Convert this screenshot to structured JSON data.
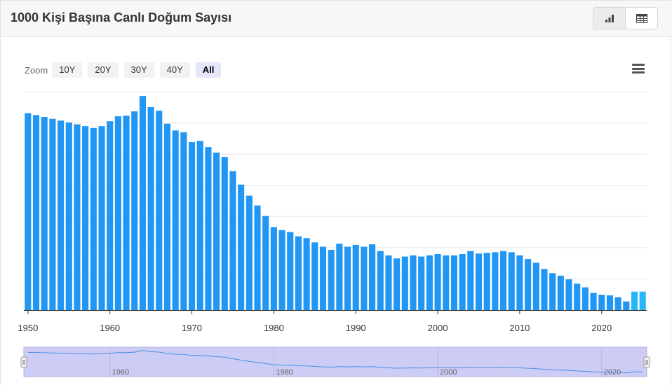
{
  "header": {
    "title": "1000 Kişi Başına Canlı Doğum Sayısı"
  },
  "view_toggle": [
    {
      "icon": "bar-chart-icon",
      "active": true
    },
    {
      "icon": "table-icon",
      "active": false
    }
  ],
  "zoom": {
    "label": "Zoom",
    "buttons": [
      "10Y",
      "20Y",
      "30Y",
      "40Y",
      "All"
    ],
    "active": "All"
  },
  "menu_icon": "hamburger-menu-icon",
  "colors": {
    "bar": "#2196f3",
    "bar_highlight": "#29b6f6",
    "navigator_fill": "#ccccf5",
    "navigator_line": "#4a90e2"
  },
  "chart_data": {
    "type": "bar",
    "title": "1000 Kişi Başına Canlı Doğum Sayısı",
    "xlabel": "",
    "ylabel": "",
    "x": [
      1950,
      1951,
      1952,
      1953,
      1954,
      1955,
      1956,
      1957,
      1958,
      1959,
      1960,
      1961,
      1962,
      1963,
      1964,
      1965,
      1966,
      1967,
      1968,
      1969,
      1970,
      1971,
      1972,
      1973,
      1974,
      1975,
      1976,
      1977,
      1978,
      1979,
      1980,
      1981,
      1982,
      1983,
      1984,
      1985,
      1986,
      1987,
      1988,
      1989,
      1990,
      1991,
      1992,
      1993,
      1994,
      1995,
      1996,
      1997,
      1998,
      1999,
      2000,
      2001,
      2002,
      2003,
      2004,
      2005,
      2006,
      2007,
      2008,
      2009,
      2010,
      2011,
      2012,
      2013,
      2014,
      2015,
      2016,
      2017,
      2018,
      2019,
      2020,
      2021,
      2022,
      2023,
      2024,
      2025
    ],
    "values": [
      32.0,
      31.7,
      31.4,
      31.1,
      30.8,
      30.5,
      30.2,
      29.9,
      29.6,
      29.9,
      30.7,
      31.5,
      31.6,
      32.3,
      34.8,
      33.0,
      32.4,
      30.3,
      29.2,
      28.9,
      27.3,
      27.5,
      26.5,
      25.6,
      24.9,
      22.6,
      20.4,
      18.6,
      17.0,
      15.3,
      13.5,
      13.0,
      12.7,
      12.0,
      11.7,
      11.0,
      10.3,
      9.8,
      10.8,
      10.3,
      10.6,
      10.3,
      10.7,
      9.6,
      8.9,
      8.4,
      8.7,
      8.9,
      8.7,
      8.9,
      9.1,
      8.9,
      8.9,
      9.1,
      9.6,
      9.2,
      9.3,
      9.4,
      9.6,
      9.4,
      8.9,
      8.3,
      7.7,
      6.7,
      6.0,
      5.6,
      5.0,
      4.3,
      3.7,
      2.8,
      2.5,
      2.4,
      2.1,
      1.4,
      3.0,
      3.0
    ],
    "xlim": [
      1949.5,
      2025.5
    ],
    "x_ticks": [
      "1950",
      "1960",
      "1970",
      "1980",
      "1990",
      "2000",
      "2010",
      "2020"
    ],
    "navigator_ticks": [
      "1960",
      "1980",
      "2000",
      "2020"
    ],
    "ylim": [
      0,
      35.5
    ],
    "grid": true,
    "y_tick_labels_shown": false
  }
}
